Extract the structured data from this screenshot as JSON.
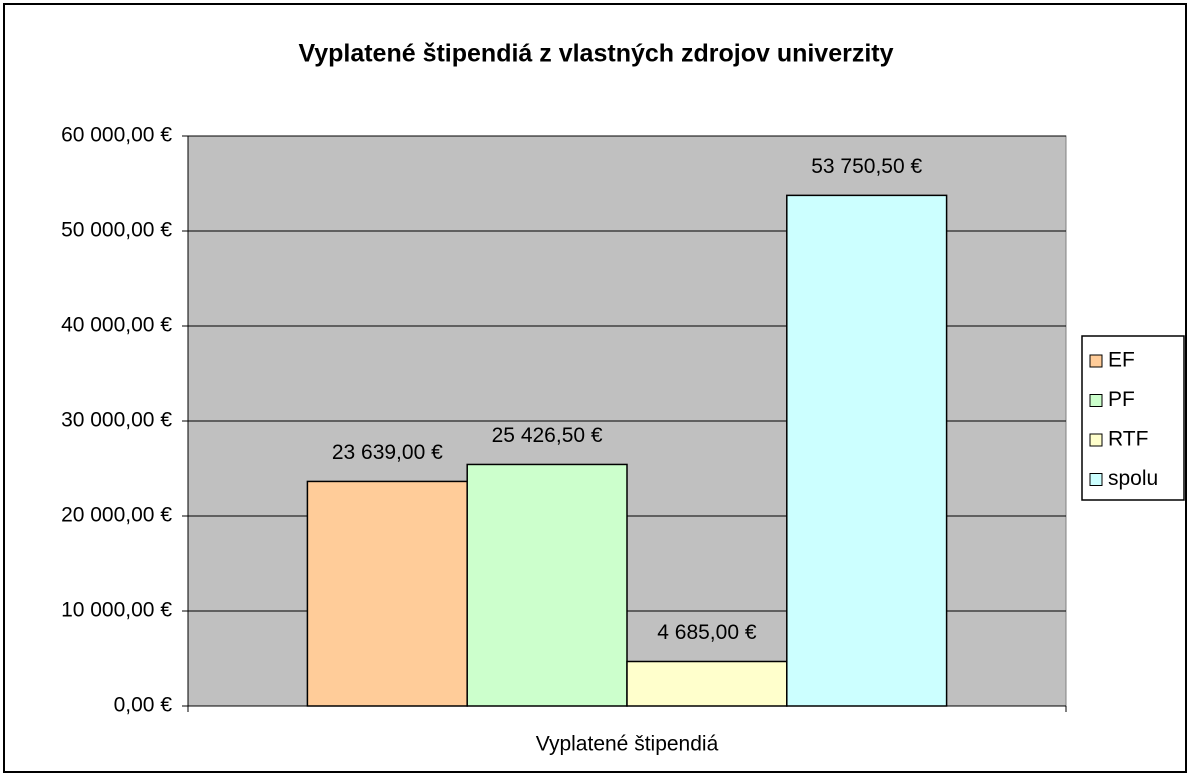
{
  "chart_data": {
    "type": "bar",
    "title": "Vyplatené štipendiá z vlastných zdrojov univerzity",
    "categories": [
      "Vyplatené štipendiá"
    ],
    "series": [
      {
        "name": "EF",
        "color": "#ffcc99",
        "values": [
          23639
        ],
        "value_labels": [
          "23 639,00 €"
        ]
      },
      {
        "name": "PF",
        "color": "#ccffcc",
        "values": [
          25426.5
        ],
        "value_labels": [
          "25 426,50 €"
        ]
      },
      {
        "name": "RTF",
        "color": "#ffffcc",
        "values": [
          4685
        ],
        "value_labels": [
          "4 685,00 €"
        ]
      },
      {
        "name": "spolu",
        "color": "#ccffff",
        "values": [
          53750.5
        ],
        "value_labels": [
          "53 750,50 €"
        ]
      }
    ],
    "ylim": [
      0,
      60000
    ],
    "yticks": [
      {
        "value": 0,
        "label": "0,00 €"
      },
      {
        "value": 10000,
        "label": "10 000,00 €"
      },
      {
        "value": 20000,
        "label": "20 000,00 €"
      },
      {
        "value": 30000,
        "label": "30 000,00 €"
      },
      {
        "value": 40000,
        "label": "40 000,00 €"
      },
      {
        "value": 50000,
        "label": "50 000,00 €"
      },
      {
        "value": 60000,
        "label": "60 000,00 €"
      }
    ],
    "grid": true,
    "plot_background": "#c0c0c0",
    "legend": "right"
  }
}
